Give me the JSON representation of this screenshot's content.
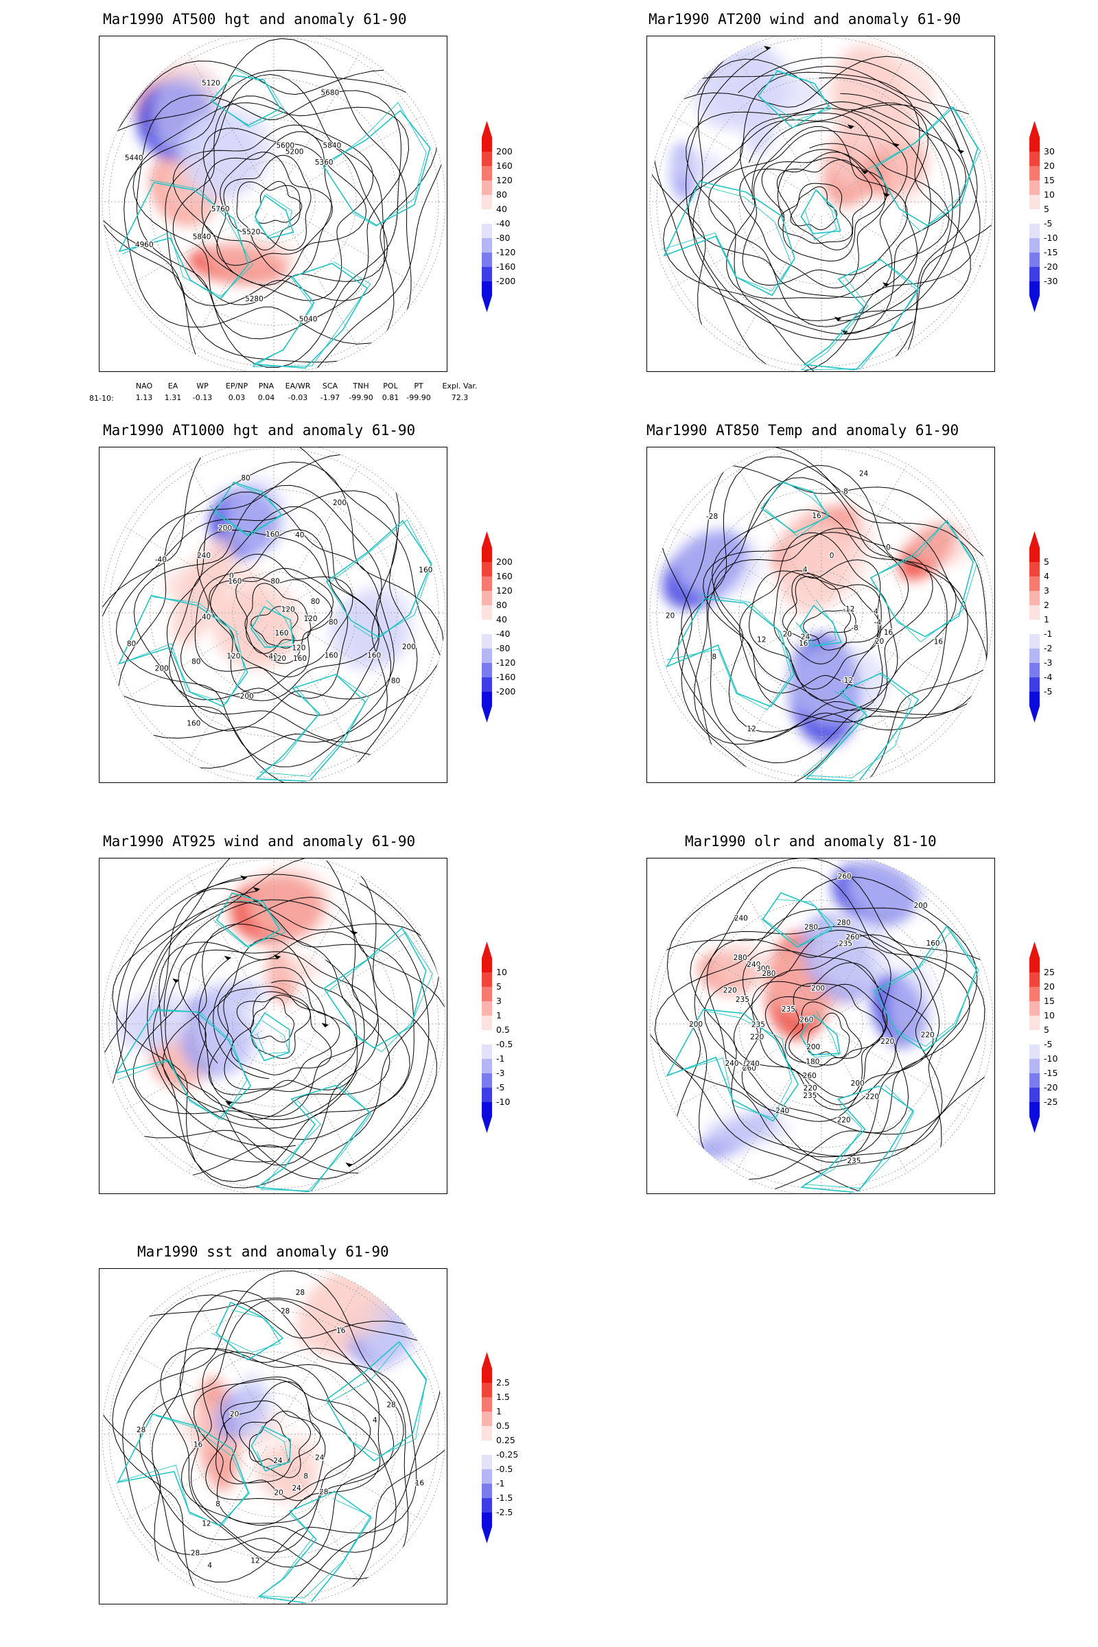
{
  "panels": [
    {
      "id": "p1",
      "title": "Mar1990 AT500 hgt and anomaly 61-90",
      "colorbar_labels": [
        "200",
        "160",
        "120",
        "80",
        "40",
        "-40",
        "-80",
        "-120",
        "-160",
        "-200"
      ],
      "contour_labels": [
        "5840",
        "4960",
        "5040",
        "5120",
        "5200",
        "5280",
        "5360",
        "5440",
        "5520",
        "5600",
        "5680",
        "5760",
        "5840"
      ],
      "anomaly_blobs": [
        {
          "sign": "pos",
          "strength": 2
        },
        {
          "sign": "pos",
          "strength": 3
        },
        {
          "sign": "pos",
          "strength": 2
        },
        {
          "sign": "neg",
          "strength": 3
        },
        {
          "sign": "neg",
          "strength": 1
        }
      ]
    },
    {
      "id": "p2",
      "title": "Mar1990 AT200 wind and anomaly 61-90",
      "colorbar_labels": [
        "30",
        "20",
        "15",
        "10",
        "5",
        "-5",
        "-10",
        "-15",
        "-20",
        "-30"
      ],
      "contour_labels": [],
      "anomaly_blobs": [
        {
          "sign": "neg",
          "strength": 1
        },
        {
          "sign": "pos",
          "strength": 2
        },
        {
          "sign": "neg",
          "strength": 2
        },
        {
          "sign": "pos",
          "strength": 1
        },
        {
          "sign": "neg",
          "strength": 1
        },
        {
          "sign": "pos",
          "strength": 2
        }
      ]
    },
    {
      "id": "p3",
      "title": "Mar1990 AT1000 hgt and anomaly 61-90",
      "colorbar_labels": [
        "200",
        "160",
        "120",
        "80",
        "40",
        "-40",
        "-80",
        "-120",
        "-160",
        "-200"
      ],
      "contour_labels": [
        "80",
        "80",
        "120",
        "160",
        "160",
        "160",
        "40",
        "40",
        "40",
        "80",
        "120",
        "160",
        "200",
        "0",
        "-40",
        "80",
        "80",
        "160",
        "120",
        "200",
        "200",
        "240",
        "160",
        "200",
        "200",
        "160",
        "120",
        "120",
        "80",
        "80",
        "160"
      ],
      "anomaly_blobs": [
        {
          "sign": "neg",
          "strength": 3
        },
        {
          "sign": "pos",
          "strength": 1
        },
        {
          "sign": "pos",
          "strength": 1
        },
        {
          "sign": "neg",
          "strength": 1
        }
      ]
    },
    {
      "id": "p4",
      "title": "Mar1990 AT850 Temp and anomaly 61-90",
      "colorbar_labels": [
        "5",
        "4",
        "3",
        "2",
        "1",
        "-1",
        "-2",
        "-3",
        "-4",
        "-5"
      ],
      "contour_labels": [
        "16",
        "12",
        "-4",
        "0",
        "-8",
        "-12",
        "-28",
        "-12",
        "-8",
        "-4",
        "0",
        "4",
        "8",
        "12",
        "16",
        "20",
        "24",
        "16",
        "16",
        "20",
        "24",
        "20"
      ],
      "anomaly_blobs": [
        {
          "sign": "pos",
          "strength": 3
        },
        {
          "sign": "pos",
          "strength": 3
        },
        {
          "sign": "neg",
          "strength": 3
        },
        {
          "sign": "neg",
          "strength": 3
        },
        {
          "sign": "pos",
          "strength": 1
        }
      ]
    },
    {
      "id": "p5",
      "title": "Mar1990 AT925 wind and anomaly 61-90",
      "colorbar_labels": [
        "10",
        "5",
        "3",
        "1",
        "0.5",
        "-0.5",
        "-1",
        "-3",
        "-5",
        "-10"
      ],
      "contour_labels": [],
      "anomaly_blobs": [
        {
          "sign": "pos",
          "strength": 2
        },
        {
          "sign": "pos",
          "strength": 2
        },
        {
          "sign": "neg",
          "strength": 2
        },
        {
          "sign": "neg",
          "strength": 2
        },
        {
          "sign": "pos",
          "strength": 3
        },
        {
          "sign": "neg",
          "strength": 1
        }
      ]
    },
    {
      "id": "p6",
      "title": "Mar1990 olr and anomaly 81-10",
      "colorbar_labels": [
        "25",
        "20",
        "15",
        "10",
        "5",
        "-5",
        "-10",
        "-15",
        "-20",
        "-25"
      ],
      "contour_labels": [
        "240",
        "235",
        "200",
        "200",
        "260",
        "235",
        "220",
        "240",
        "260",
        "200",
        "220",
        "240",
        "235",
        "220",
        "220",
        "160",
        "180",
        "200",
        "220",
        "280",
        "235",
        "200",
        "220",
        "260",
        "300",
        "280",
        "235",
        "240",
        "280",
        "260",
        "220",
        "235",
        "280",
        "240",
        "260"
      ],
      "anomaly_blobs": [
        {
          "sign": "neg",
          "strength": 3
        },
        {
          "sign": "neg",
          "strength": 3
        },
        {
          "sign": "pos",
          "strength": 2
        },
        {
          "sign": "pos",
          "strength": 3
        },
        {
          "sign": "neg",
          "strength": 2
        },
        {
          "sign": "neg",
          "strength": 2
        }
      ]
    },
    {
      "id": "p7",
      "title": "Mar1990 sst and anomaly 61-90",
      "colorbar_labels": [
        "2.5",
        "1.5",
        "1",
        "0.5",
        "0.25",
        "-0.25",
        "-0.5",
        "-1",
        "-1.5",
        "-2.5"
      ],
      "contour_labels": [
        "28",
        "28",
        "24",
        "20",
        "16",
        "12",
        "8",
        "4",
        "28",
        "28",
        "28",
        "24",
        "16",
        "12",
        "8",
        "4",
        "16",
        "20",
        "24",
        "28"
      ],
      "anomaly_blobs": [
        {
          "sign": "pos",
          "strength": 1
        },
        {
          "sign": "pos",
          "strength": 2
        },
        {
          "sign": "neg",
          "strength": 2
        },
        {
          "sign": "neg",
          "strength": 2
        },
        {
          "sign": "pos",
          "strength": 1
        },
        {
          "sign": "pos",
          "strength": 1
        }
      ]
    }
  ],
  "teleconnection": {
    "row_label": "81-10:",
    "indices": [
      {
        "name": "NAO",
        "value": "1.13"
      },
      {
        "name": "EA",
        "value": "1.31"
      },
      {
        "name": "WP",
        "value": "-0.13"
      },
      {
        "name": "EP/NP",
        "value": "0.03"
      },
      {
        "name": "PNA",
        "value": "0.04"
      },
      {
        "name": "EA/WR",
        "value": "-0.03"
      },
      {
        "name": "SCA",
        "value": "-1.97"
      },
      {
        "name": "TNH",
        "value": "-99.90"
      },
      {
        "name": "POL",
        "value": "0.81"
      },
      {
        "name": "PT",
        "value": "-99.90"
      },
      {
        "name": "Expl. Var.",
        "value": "72.3"
      }
    ]
  },
  "colors": {
    "coast": "#1fc4c4",
    "contour": "#000000",
    "graticule": "#aaaaaa",
    "colorbar": [
      "#e8150f",
      "#f0453a",
      "#f77a70",
      "#fbb4ad",
      "#fde3e0",
      "#ffffff",
      "#e2e3fb",
      "#b4b6f6",
      "#7a7cee",
      "#3d3fe4",
      "#0b0bdd"
    ]
  }
}
